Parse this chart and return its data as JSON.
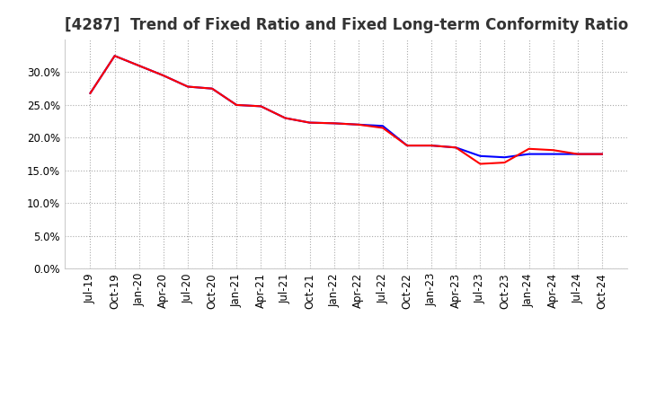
{
  "title": "[4287]  Trend of Fixed Ratio and Fixed Long-term Conformity Ratio",
  "x_labels": [
    "Jul-19",
    "Oct-19",
    "Jan-20",
    "Apr-20",
    "Jul-20",
    "Oct-20",
    "Jan-21",
    "Apr-21",
    "Jul-21",
    "Oct-21",
    "Jan-22",
    "Apr-22",
    "Jul-22",
    "Oct-22",
    "Jan-23",
    "Apr-23",
    "Jul-23",
    "Oct-23",
    "Jan-24",
    "Apr-24",
    "Jul-24",
    "Oct-24"
  ],
  "fixed_ratio": [
    26.8,
    32.5,
    31.0,
    29.5,
    27.8,
    27.5,
    25.0,
    24.8,
    23.0,
    22.3,
    22.2,
    22.0,
    21.8,
    18.8,
    18.8,
    18.5,
    17.2,
    17.0,
    17.5,
    17.5,
    17.5,
    17.5
  ],
  "fixed_lt_ratio": [
    26.8,
    32.5,
    31.0,
    29.5,
    27.8,
    27.5,
    25.0,
    24.8,
    23.0,
    22.3,
    22.2,
    22.0,
    21.5,
    18.8,
    18.8,
    18.5,
    16.0,
    16.2,
    18.3,
    18.1,
    17.5,
    17.5
  ],
  "fixed_ratio_color": "#0000ff",
  "fixed_lt_ratio_color": "#ff0000",
  "ylim": [
    0.0,
    35.0
  ],
  "yticks": [
    0.0,
    5.0,
    10.0,
    15.0,
    20.0,
    25.0,
    30.0
  ],
  "background_color": "#ffffff",
  "plot_bg_color": "#ffffff",
  "grid_color": "#aaaaaa",
  "title_fontsize": 12,
  "legend_fontsize": 10,
  "tick_fontsize": 8.5
}
